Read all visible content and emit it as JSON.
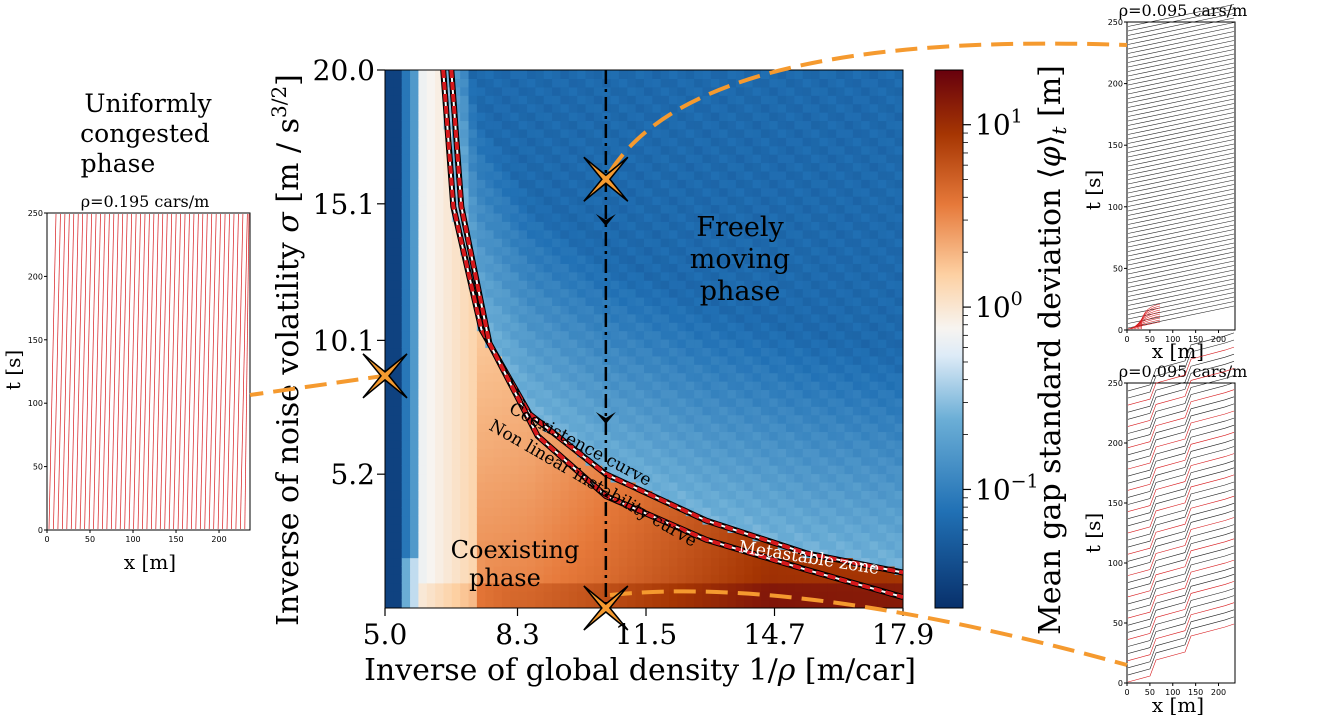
{
  "figure": {
    "left_text": [
      "Uniformly",
      "congested",
      "phase"
    ],
    "panels": [
      {
        "id": "left",
        "title": "ρ=0.195 cars/m",
        "xlabel": "x [m]",
        "ylabel": "t [s]",
        "xticks": [
          "0",
          "50",
          "100",
          "150",
          "200"
        ],
        "yticks": [
          "0",
          "50",
          "100",
          "150",
          "200",
          "250"
        ]
      },
      {
        "id": "right_top",
        "title": "ρ=0.095 cars/m",
        "xlabel": "x [m]",
        "ylabel": "t [s]",
        "xticks": [
          "0",
          "50",
          "100",
          "150",
          "200"
        ],
        "yticks": [
          "0",
          "50",
          "100",
          "150",
          "200",
          "250"
        ]
      },
      {
        "id": "right_bottom",
        "title": "ρ=0.095 cars/m",
        "xlabel": "x [m]",
        "ylabel": "t [s]",
        "xticks": [
          "0",
          "50",
          "100",
          "150",
          "200"
        ],
        "yticks": [
          "0",
          "50",
          "100",
          "150",
          "200",
          "250"
        ]
      }
    ]
  },
  "chart_data": {
    "type": "heatmap",
    "xlabel": "Inverse of global density 1/ρ [m/car]",
    "ylabel": "Inverse of noise volatility σ [m / s3/2]",
    "x_ticks": [
      "5.0",
      "8.3",
      "11.5",
      "14.7",
      "17.9"
    ],
    "y_ticks": [
      "5.2",
      "10.1",
      "15.1",
      "20.0"
    ],
    "xlim": [
      5.0,
      17.9
    ],
    "ylim": [
      0.3,
      20.0
    ],
    "colorbar": {
      "label": "Mean gap standard deviation ⟨φ⟩t [m]",
      "scale": "log",
      "ticks": [
        "10−1",
        "100",
        "101"
      ],
      "colors": [
        "#08306b",
        "#2171b5",
        "#6baed6",
        "#deebf7",
        "#f7f7f7",
        "#fdd0a2",
        "#f16913",
        "#a63603",
        "#67000d"
      ]
    },
    "annotations": [
      "Freely moving phase",
      "Coexisting phase",
      "Coexistence curve",
      "Non linear instability curve",
      "Metastable zone"
    ],
    "dashed_vertical_x": 10.5,
    "markers": [
      {
        "x": 10.5,
        "y": 16.0,
        "color": "#f59a2f"
      },
      {
        "x": 5.0,
        "y": 8.8,
        "color": "#f59a2f"
      },
      {
        "x": 10.5,
        "y": 0.3,
        "color": "#f59a2f"
      }
    ],
    "coexistence_curve": [
      [
        6.45,
        20.0
      ],
      [
        6.7,
        15.0
      ],
      [
        7.4,
        10.5
      ],
      [
        8.6,
        7.4
      ],
      [
        10.5,
        5.2
      ],
      [
        13.0,
        3.5
      ],
      [
        15.5,
        2.3
      ],
      [
        17.9,
        1.6
      ]
    ],
    "instability_curve": [
      [
        6.65,
        20.0
      ],
      [
        6.9,
        15.0
      ],
      [
        7.6,
        10.0
      ],
      [
        8.8,
        6.6
      ],
      [
        10.5,
        4.4
      ],
      [
        13.0,
        2.8
      ],
      [
        15.5,
        1.7
      ],
      [
        17.9,
        0.7
      ]
    ]
  }
}
